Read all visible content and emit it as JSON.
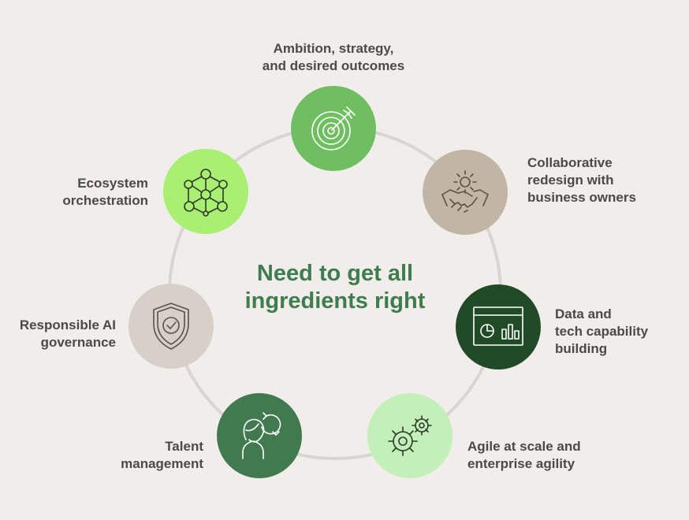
{
  "center": {
    "title": "Need to get all\ningredients right"
  },
  "colors": {
    "background": "#f0edea",
    "ring": "#d8d5d2",
    "title": "#3f7d4f",
    "label": "#4a4a4a"
  },
  "nodes": [
    {
      "label": "Ambition, strategy,\nand desired outcomes",
      "icon": "target-icon",
      "color": "#6fbf62"
    },
    {
      "label": "Collaborative\nredesign with\nbusiness owners",
      "icon": "handshake-gear-icon",
      "color": "#c1b6a6"
    },
    {
      "label": "Data and\ntech capability\nbuilding",
      "icon": "dashboard-icon",
      "color": "#214a26"
    },
    {
      "label": "Agile at scale and\nenterprise agility",
      "icon": "gears-icon",
      "color": "#c3efb8"
    },
    {
      "label": "Talent\nmanagement",
      "icon": "person-cycle-icon",
      "color": "#417a4f"
    },
    {
      "label": "Responsible AI\ngovernance",
      "icon": "shield-check-icon",
      "color": "#d8d0c8"
    },
    {
      "label": "Ecosystem\norchestration",
      "icon": "network-icon",
      "color": "#a9ef72"
    }
  ]
}
